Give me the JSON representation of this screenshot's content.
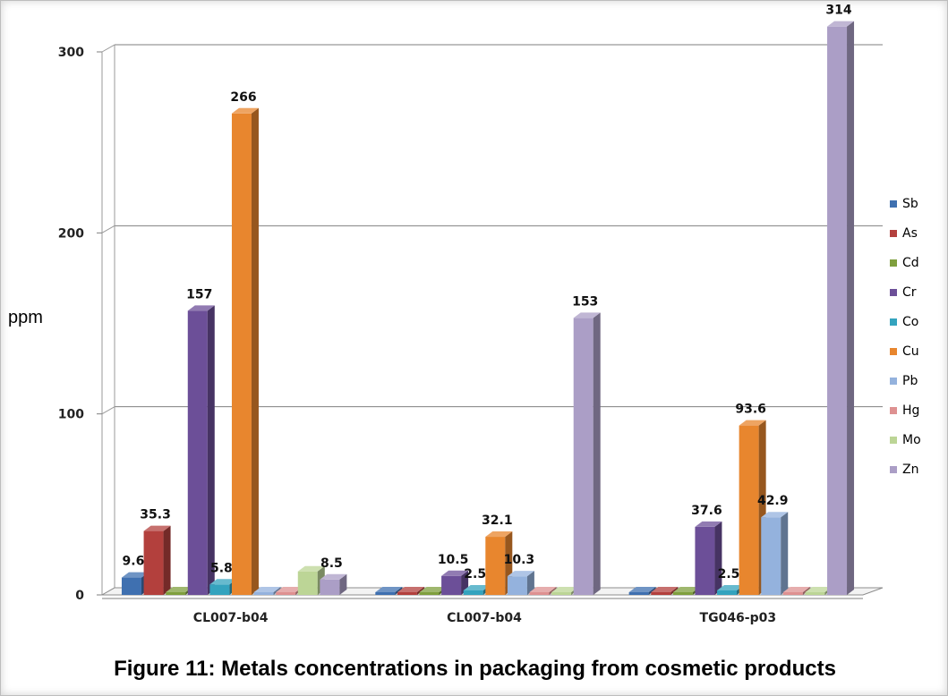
{
  "figure": {
    "caption": "Figure 11: Metals concentrations in packaging from cosmetic products"
  },
  "chart_data": {
    "type": "bar",
    "style": "3d-clustered-column",
    "title": "",
    "ylabel": "ppm",
    "xlabel": "",
    "ylim": [
      0,
      300
    ],
    "yticks": [
      0,
      100,
      200,
      300
    ],
    "grid": true,
    "legend_position": "right",
    "categories": [
      "CL007-b04",
      "CL007-b04",
      "TG046-p03"
    ],
    "series": [
      {
        "name": "Sb",
        "color": "#3f70b0",
        "values": [
          9.6,
          0,
          0
        ],
        "labels": [
          "9.6",
          "",
          ""
        ]
      },
      {
        "name": "As",
        "color": "#b3403d",
        "values": [
          35.3,
          0,
          0
        ],
        "labels": [
          "35.3",
          "",
          ""
        ]
      },
      {
        "name": "Cd",
        "color": "#7f9f3e",
        "values": [
          0,
          0,
          0
        ],
        "labels": [
          "",
          "",
          ""
        ]
      },
      {
        "name": "Cr",
        "color": "#6c4f98",
        "values": [
          157,
          10.5,
          37.6
        ],
        "labels": [
          "157",
          "10.5",
          "37.6"
        ]
      },
      {
        "name": "Co",
        "color": "#34a3be",
        "values": [
          5.8,
          2.5,
          2.5
        ],
        "labels": [
          "5.8",
          "2.5",
          "2.5"
        ]
      },
      {
        "name": "Cu",
        "color": "#e8862e",
        "values": [
          266,
          32.1,
          93.6
        ],
        "labels": [
          "266",
          "32.1",
          "93.6"
        ]
      },
      {
        "name": "Pb",
        "color": "#94b2dd",
        "values": [
          0,
          10.3,
          42.9
        ],
        "labels": [
          "",
          "10.3",
          "42.9"
        ]
      },
      {
        "name": "Hg",
        "color": "#de9191",
        "values": [
          0,
          0,
          0
        ],
        "labels": [
          "",
          "",
          ""
        ]
      },
      {
        "name": "Mo",
        "color": "#bcd596",
        "values": [
          13,
          0,
          0
        ],
        "labels": [
          "",
          "",
          ""
        ]
      },
      {
        "name": "Zn",
        "color": "#ab9ec6",
        "values": [
          8.5,
          153,
          314
        ],
        "labels": [
          "8.5",
          "153",
          "314"
        ]
      }
    ]
  }
}
